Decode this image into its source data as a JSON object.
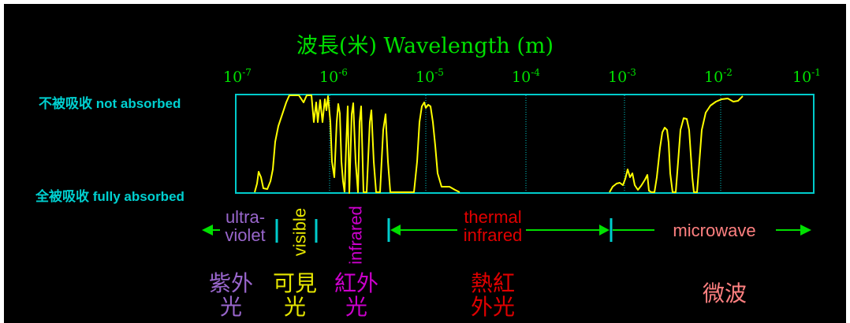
{
  "axis": {
    "title": "波長(米) Wavelength (m)",
    "ticks": [
      {
        "base": "10",
        "exp": "-7"
      },
      {
        "base": "10",
        "exp": "-6"
      },
      {
        "base": "10",
        "exp": "-5"
      },
      {
        "base": "10",
        "exp": "-4"
      },
      {
        "base": "10",
        "exp": "-3"
      },
      {
        "base": "10",
        "exp": "-2"
      },
      {
        "base": "10",
        "exp": "-1"
      }
    ],
    "top_label": "不被吸收 not absorbed",
    "bottom_label": "全被吸收 fully absorbed"
  },
  "bands": {
    "ultraviolet": {
      "line1": "ultra-",
      "line2": "violet",
      "cjk1": "紫外",
      "cjk2": "光",
      "color": "#9966cc"
    },
    "visible": {
      "label": "visible",
      "cjk1": "可見",
      "cjk2": "光",
      "color": "#e6e600"
    },
    "infrared": {
      "label": "infrared",
      "cjk1": "紅外",
      "cjk2": "光",
      "color": "#cc00cc"
    },
    "thermal": {
      "line1": "thermal",
      "line2": "infrared",
      "cjk1": "熱紅",
      "cjk2": "外光",
      "color": "#e00000"
    },
    "microwave": {
      "label": "microwave",
      "cjk": "微波",
      "color": "#ff8080"
    }
  },
  "colors": {
    "curve": "#ffff00",
    "box": "#00cccc",
    "arrows": "#00e000",
    "dividers": "#00cccc",
    "gridlines": "#00cccc"
  }
}
